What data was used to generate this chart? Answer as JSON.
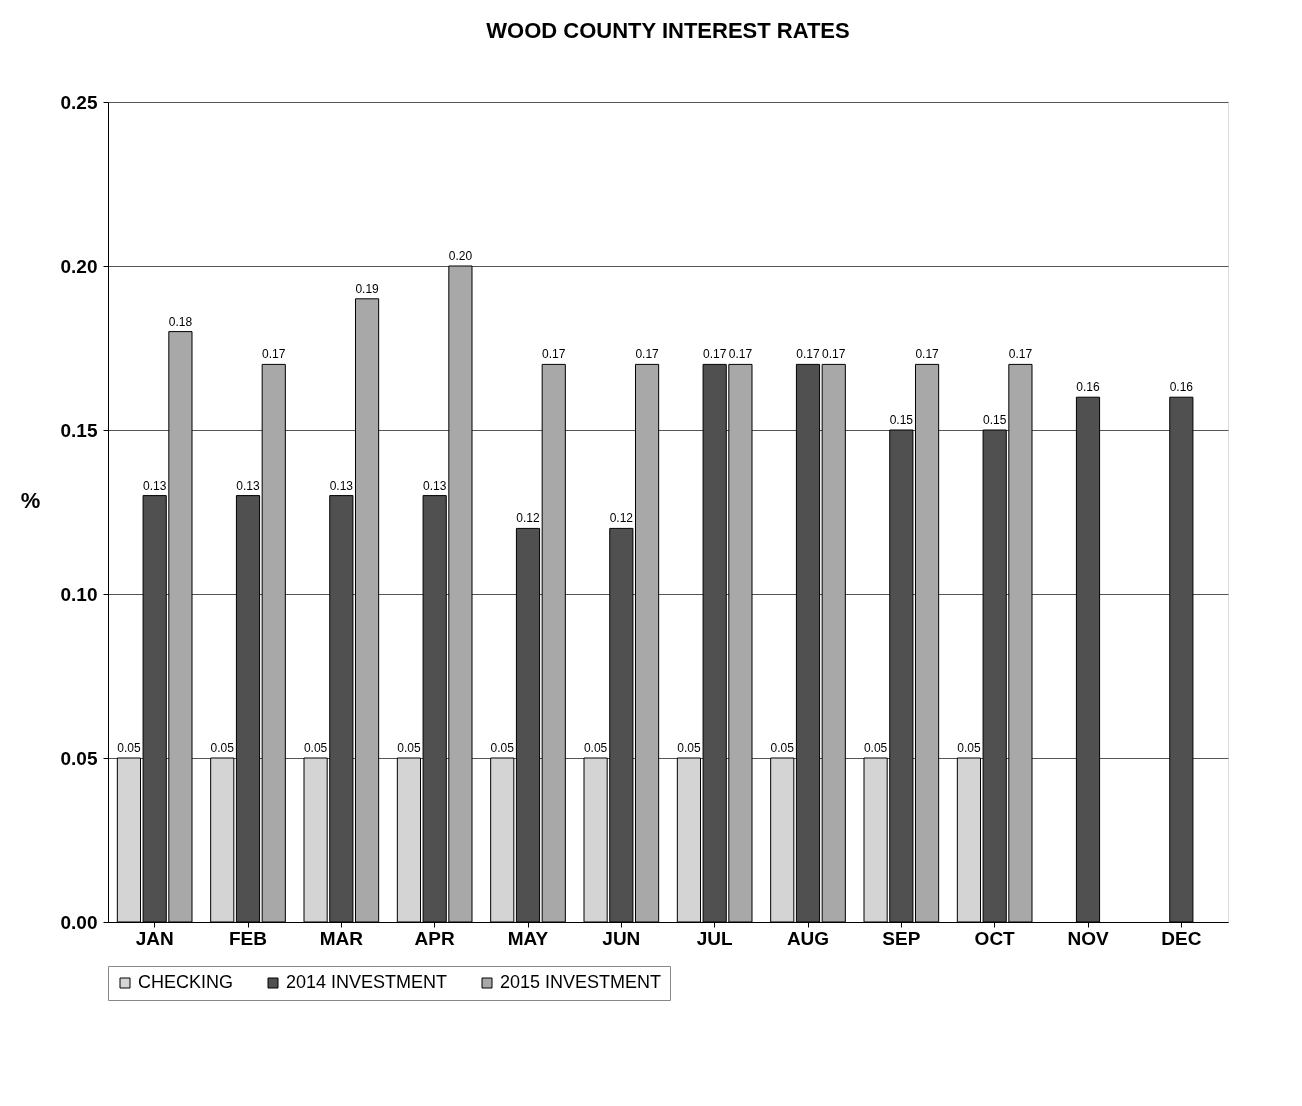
{
  "chart_data": {
    "type": "bar",
    "title": "WOOD COUNTY INTEREST RATES",
    "ylabel": "%",
    "categories": [
      "JAN",
      "FEB",
      "MAR",
      "APR",
      "MAY",
      "JUN",
      "JUL",
      "AUG",
      "SEP",
      "OCT",
      "NOV",
      "DEC"
    ],
    "series": [
      {
        "name": "CHECKING",
        "color": "#d4d4d4",
        "values": [
          0.05,
          0.05,
          0.05,
          0.05,
          0.05,
          0.05,
          0.05,
          0.05,
          0.05,
          0.05,
          null,
          null
        ],
        "value_labels": [
          "0.05",
          "0.05",
          "0.05",
          "0.05",
          "0.05",
          "0.05",
          "0.05",
          "0.05",
          "0.05",
          "0.05",
          null,
          null
        ]
      },
      {
        "name": "2014 INVESTMENT",
        "color": "#505050",
        "values": [
          0.13,
          0.13,
          0.13,
          0.13,
          0.12,
          0.12,
          0.17,
          0.17,
          0.15,
          0.15,
          0.16,
          0.16
        ],
        "value_labels": [
          "0.13",
          "0.13",
          "0.13",
          "0.13",
          "0.12",
          "0.12",
          "0.17",
          "0.17",
          "0.15",
          "0.15",
          "0.16",
          "0.16"
        ]
      },
      {
        "name": "2015 INVESTMENT",
        "color": "#a8a8a8",
        "values": [
          0.18,
          0.17,
          0.19,
          0.2,
          0.17,
          0.17,
          0.17,
          0.17,
          0.17,
          0.17,
          null,
          null
        ],
        "value_labels": [
          "0.18",
          "0.17",
          "0.19",
          "0.20",
          "0.17",
          "0.17",
          "0.17",
          "0.17",
          "0.17",
          "0.17",
          null,
          null
        ]
      }
    ],
    "ylim": [
      0,
      0.25
    ],
    "yticks": [
      {
        "value": 0,
        "label": "0.00"
      },
      0.05,
      {
        "value": 0.1,
        "label": "0.10"
      },
      0.15,
      {
        "value": 0.2,
        "label": "0.20"
      },
      0.25
    ],
    "grid": "y",
    "legend": "bottom"
  }
}
